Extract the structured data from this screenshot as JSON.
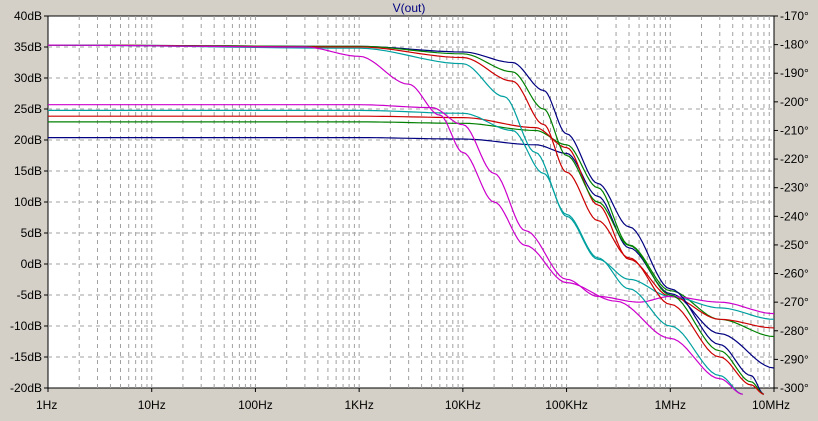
{
  "window": {
    "title": "V(out)"
  },
  "chart_data": {
    "type": "line",
    "title": "V(out)",
    "x_axis": {
      "scale": "log",
      "range": [
        1,
        10000000
      ],
      "ticks": [
        {
          "value": 1,
          "label": "1Hz"
        },
        {
          "value": 10,
          "label": "10Hz"
        },
        {
          "value": 100,
          "label": "100Hz"
        },
        {
          "value": 1000,
          "label": "1KHz"
        },
        {
          "value": 10000,
          "label": "10KHz"
        },
        {
          "value": 100000,
          "label": "100KHz"
        },
        {
          "value": 1000000,
          "label": "1MHz"
        },
        {
          "value": 10000000,
          "label": "10MHz"
        }
      ]
    },
    "y_left": {
      "range": [
        -20,
        40
      ],
      "ticks": [
        {
          "value": 40,
          "label": "40dB"
        },
        {
          "value": 35,
          "label": "35dB"
        },
        {
          "value": 30,
          "label": "30dB"
        },
        {
          "value": 25,
          "label": "25dB"
        },
        {
          "value": 20,
          "label": "20dB"
        },
        {
          "value": 15,
          "label": "15dB"
        },
        {
          "value": 10,
          "label": "10dB"
        },
        {
          "value": 5,
          "label": "5dB"
        },
        {
          "value": 0,
          "label": "0dB"
        },
        {
          "value": -5,
          "label": "-5dB"
        },
        {
          "value": -10,
          "label": "-10dB"
        },
        {
          "value": -15,
          "label": "-15dB"
        },
        {
          "value": -20,
          "label": "-20dB"
        }
      ]
    },
    "y_right": {
      "range": [
        -300,
        -170
      ],
      "ticks": [
        {
          "value": -170,
          "label": "-170°"
        },
        {
          "value": -180,
          "label": "-180°"
        },
        {
          "value": -190,
          "label": "-190°"
        },
        {
          "value": -200,
          "label": "-200°"
        },
        {
          "value": -210,
          "label": "-210°"
        },
        {
          "value": -220,
          "label": "-220°"
        },
        {
          "value": -230,
          "label": "-230°"
        },
        {
          "value": -240,
          "label": "-240°"
        },
        {
          "value": -250,
          "label": "-250°"
        },
        {
          "value": -260,
          "label": "-260°"
        },
        {
          "value": -270,
          "label": "-270°"
        },
        {
          "value": -280,
          "label": "-280°"
        },
        {
          "value": -290,
          "label": "-290°"
        },
        {
          "value": -300,
          "label": "-300°"
        }
      ]
    },
    "grid": true,
    "magnitude_series": [
      {
        "color": "#000080",
        "points": [
          [
            1,
            35.3
          ],
          [
            1000,
            35.1
          ],
          [
            10000,
            34.2
          ],
          [
            30000,
            32.5
          ],
          [
            60000,
            28
          ],
          [
            100000,
            21
          ],
          [
            200000,
            13
          ],
          [
            400000,
            6
          ],
          [
            1000000,
            -4
          ],
          [
            3000000,
            -13
          ],
          [
            6000000,
            -18
          ],
          [
            8000000,
            -21
          ]
        ]
      },
      {
        "color": "#008000",
        "points": [
          [
            1,
            35.3
          ],
          [
            1000,
            35.1
          ],
          [
            10000,
            33.9
          ],
          [
            30000,
            31
          ],
          [
            60000,
            25
          ],
          [
            100000,
            17.5
          ],
          [
            200000,
            10
          ],
          [
            400000,
            3
          ],
          [
            1000000,
            -5
          ],
          [
            3000000,
            -14
          ],
          [
            6000000,
            -19
          ],
          [
            8000000,
            -21
          ]
        ]
      },
      {
        "color": "#cc0000",
        "points": [
          [
            1,
            35.3
          ],
          [
            1000,
            35.0
          ],
          [
            10000,
            33.3
          ],
          [
            30000,
            29.5
          ],
          [
            60000,
            22.5
          ],
          [
            100000,
            14.8
          ],
          [
            200000,
            7
          ],
          [
            400000,
            1
          ],
          [
            1000000,
            -6.5
          ],
          [
            3000000,
            -15
          ],
          [
            6000000,
            -19.5
          ],
          [
            8000000,
            -21
          ]
        ]
      },
      {
        "color": "#00a0a0",
        "points": [
          [
            1,
            35.3
          ],
          [
            1000,
            34.8
          ],
          [
            10000,
            32.3
          ],
          [
            25000,
            27
          ],
          [
            50000,
            18
          ],
          [
            100000,
            8
          ],
          [
            200000,
            1
          ],
          [
            400000,
            -4
          ],
          [
            1000000,
            -10
          ],
          [
            3000000,
            -18
          ],
          [
            5000000,
            -21
          ]
        ]
      },
      {
        "color": "#cc00cc",
        "points": [
          [
            1,
            35.3
          ],
          [
            300,
            35.0
          ],
          [
            1000,
            33.5
          ],
          [
            3000,
            29
          ],
          [
            6000,
            24
          ],
          [
            10000,
            18
          ],
          [
            20000,
            10
          ],
          [
            40000,
            3
          ],
          [
            100000,
            -3
          ],
          [
            300000,
            -6
          ],
          [
            1000000,
            -12
          ],
          [
            3000000,
            -18.5
          ],
          [
            5000000,
            -21
          ]
        ]
      }
    ],
    "phase_series": [
      {
        "color": "#000080",
        "points": [
          [
            1,
            -212.5
          ],
          [
            1000,
            -212.5
          ],
          [
            10000,
            -213
          ],
          [
            50000,
            -215
          ],
          [
            100000,
            -218
          ],
          [
            200000,
            -233
          ],
          [
            400000,
            -251
          ],
          [
            1000000,
            -267
          ],
          [
            3000000,
            -281
          ],
          [
            10000000,
            -293
          ]
        ]
      },
      {
        "color": "#008000",
        "points": [
          [
            1,
            -207
          ],
          [
            1000,
            -207
          ],
          [
            10000,
            -207.5
          ],
          [
            50000,
            -210
          ],
          [
            100000,
            -215
          ],
          [
            200000,
            -230
          ],
          [
            400000,
            -250
          ],
          [
            1000000,
            -266
          ],
          [
            3000000,
            -276
          ],
          [
            10000000,
            -282
          ]
        ]
      },
      {
        "color": "#cc0000",
        "points": [
          [
            1,
            -205
          ],
          [
            1000,
            -205
          ],
          [
            10000,
            -205.5
          ],
          [
            50000,
            -209
          ],
          [
            100000,
            -216
          ],
          [
            200000,
            -236
          ],
          [
            400000,
            -255
          ],
          [
            1000000,
            -268
          ],
          [
            3000000,
            -276
          ],
          [
            10000000,
            -279
          ]
        ]
      },
      {
        "color": "#00a0a0",
        "points": [
          [
            1,
            -203
          ],
          [
            1000,
            -203
          ],
          [
            10000,
            -204
          ],
          [
            30000,
            -210
          ],
          [
            60000,
            -225
          ],
          [
            100000,
            -240
          ],
          [
            200000,
            -255
          ],
          [
            400000,
            -262
          ],
          [
            1000000,
            -268
          ],
          [
            3000000,
            -272
          ],
          [
            10000000,
            -276
          ]
        ]
      },
      {
        "color": "#cc00cc",
        "points": [
          [
            1,
            -201
          ],
          [
            1000,
            -201
          ],
          [
            5000,
            -202
          ],
          [
            10000,
            -208
          ],
          [
            20000,
            -225
          ],
          [
            40000,
            -245
          ],
          [
            100000,
            -262
          ],
          [
            200000,
            -268
          ],
          [
            500000,
            -270
          ],
          [
            1000000,
            -268
          ],
          [
            3000000,
            -270
          ],
          [
            10000000,
            -274
          ]
        ]
      }
    ]
  }
}
